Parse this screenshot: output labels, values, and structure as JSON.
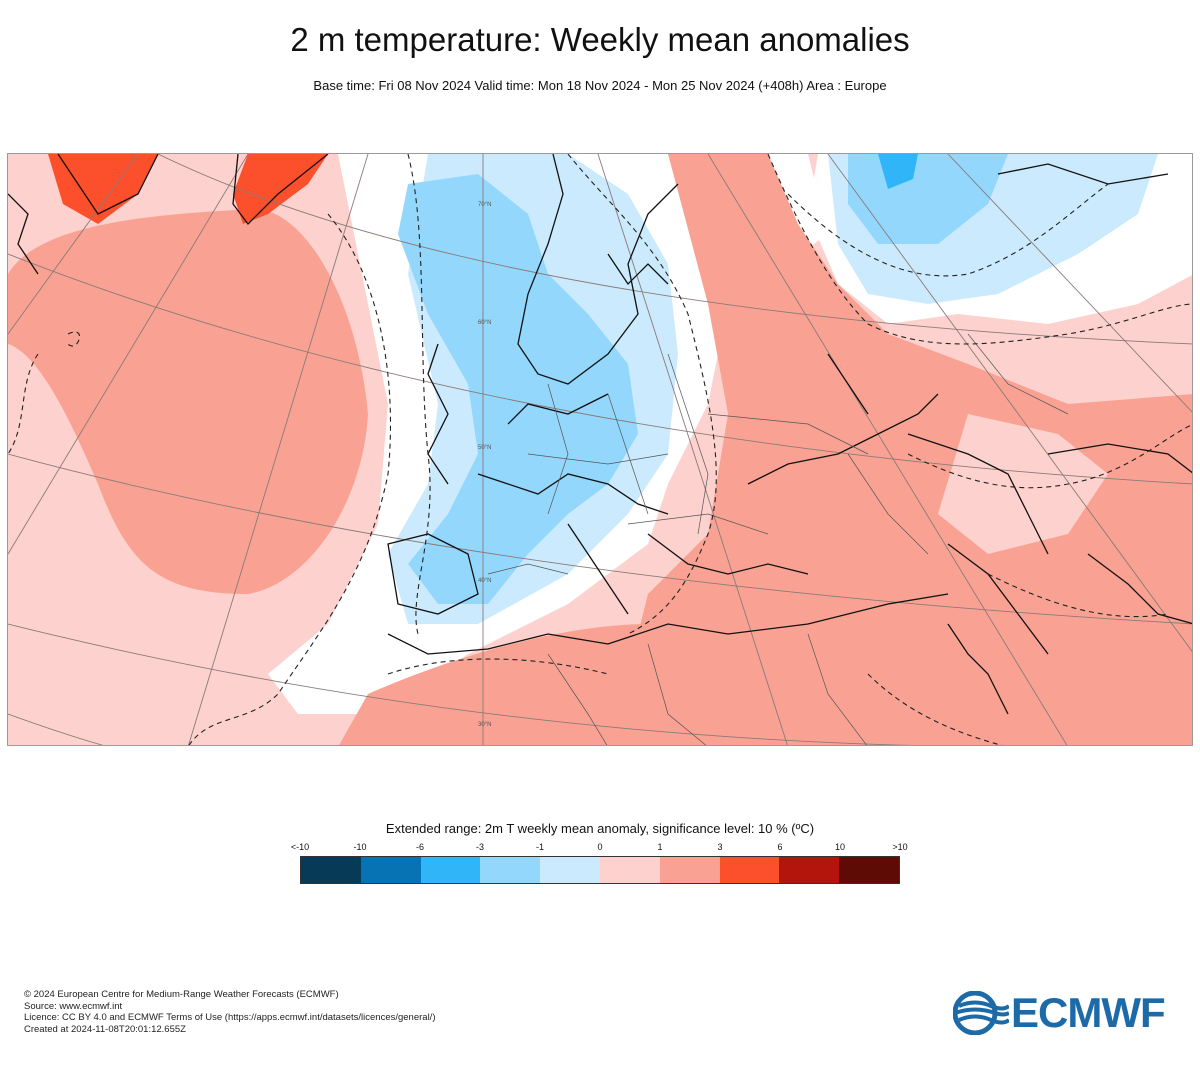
{
  "title": "2 m temperature: Weekly mean anomalies",
  "subtitle": "Base time: Fri 08 Nov 2024 Valid time: Mon 18 Nov 2024 - Mon 25 Nov 2024 (+408h) Area : Europe",
  "map": {
    "area": "Europe",
    "grid_labels": [
      "70°N",
      "60°N",
      "50°N",
      "40°N",
      "30°N"
    ]
  },
  "legend": {
    "title": "Extended range: 2m T weekly mean anomaly, significance level: 10 % (ºC)",
    "ticks": [
      "<-10",
      "-10",
      "-6",
      "-3",
      "-1",
      "0",
      "1",
      "3",
      "6",
      "10",
      ">10"
    ],
    "colors": [
      "#063a57",
      "#0773b5",
      "#30b6f8",
      "#94d7fc",
      "#cbeafd",
      "#fdd1cd",
      "#f9a293",
      "#fc4f2c",
      "#b3140c",
      "#5e0b05"
    ]
  },
  "footer": {
    "line1": "© 2024 European Centre for Medium-Range Weather Forecasts (ECMWF)",
    "line2": "Source: www.ecmwf.int",
    "line3": "Licence: CC BY 4.0 and ECMWF Terms of Use (https://apps.ecmwf.int/datasets/licences/general/)",
    "line4": "Created at 2024-11-08T20:01:12.655Z"
  },
  "logo": {
    "text": "ECMWF",
    "color": "#1d6aa8"
  }
}
